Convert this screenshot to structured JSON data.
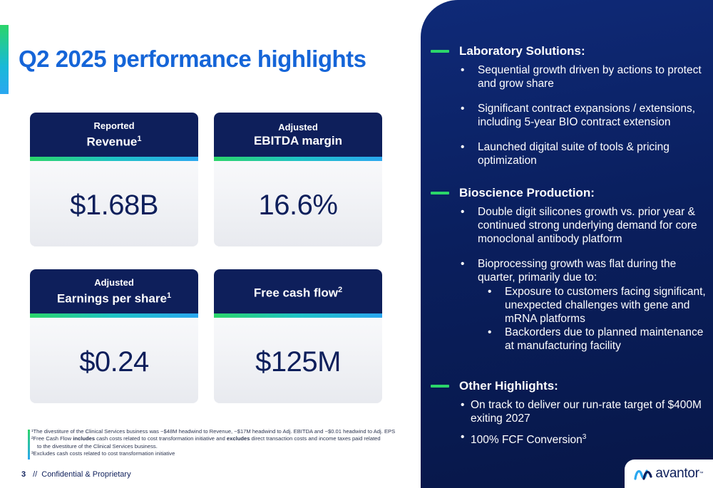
{
  "title": "Q2 2025 performance highlights",
  "cards": [
    {
      "sub": "Reported",
      "main": "Revenue",
      "sup": "1",
      "value": "$1.68B"
    },
    {
      "sub": "Adjusted",
      "main": "EBITDA margin",
      "sup": "",
      "value": "16.6%"
    },
    {
      "sub": "Adjusted",
      "main": "Earnings per share",
      "sup": "1",
      "value": "$0.24"
    },
    {
      "sub": "",
      "main": "Free cash flow",
      "sup": "2",
      "value": "$125M"
    }
  ],
  "footnotes": [
    "¹The divestiture of the Clinical Services business was ~$48M headwind to Revenue, ~$17M headwind to Adj. EBITDA and ~$0.01 headwind to Adj. EPS",
    "²Free Cash Flow ",
    "includes",
    " cash costs related to cost transformation initiative and ",
    "excludes",
    " direct transaction costs and income taxes paid related",
    "to the divestiture of the Clinical Services business.",
    "³Excludes cash costs related to cost transformation initiative"
  ],
  "footer": {
    "page": "3",
    "separator": "//",
    "label": "Confidential & Proprietary"
  },
  "panel": {
    "lab": {
      "title": "Laboratory Solutions:",
      "bullets": [
        "Sequential growth driven by actions to protect and grow share",
        "Significant contract expansions / extensions, including 5-year BIO contract extension",
        "Launched digital suite of tools & pricing optimization"
      ]
    },
    "bio": {
      "title": "Bioscience Production:",
      "bullets": [
        "Double digit silicones growth vs. prior year & continued strong underlying demand for core monoclonal antibody platform",
        "Bioprocessing growth was flat during the quarter, primarily due to:"
      ],
      "sub_bullets": [
        "Exposure to customers facing significant, unexpected challenges with gene and mRNA platforms",
        "Backorders due to planned maintenance at manufacturing facility"
      ]
    },
    "other": {
      "title": "Other Highlights:",
      "bullets": [
        "On track to deliver our run-rate target of $400M exiting 2027",
        "100% FCF Conversion"
      ],
      "last_sup": "3"
    }
  },
  "logo": {
    "text": "avantor",
    "tm": "™"
  },
  "colors": {
    "navy": "#0e1f5b",
    "title_blue": "#1565d8",
    "accent_green": "#2bd56a",
    "accent_blue": "#2aa7f0"
  }
}
